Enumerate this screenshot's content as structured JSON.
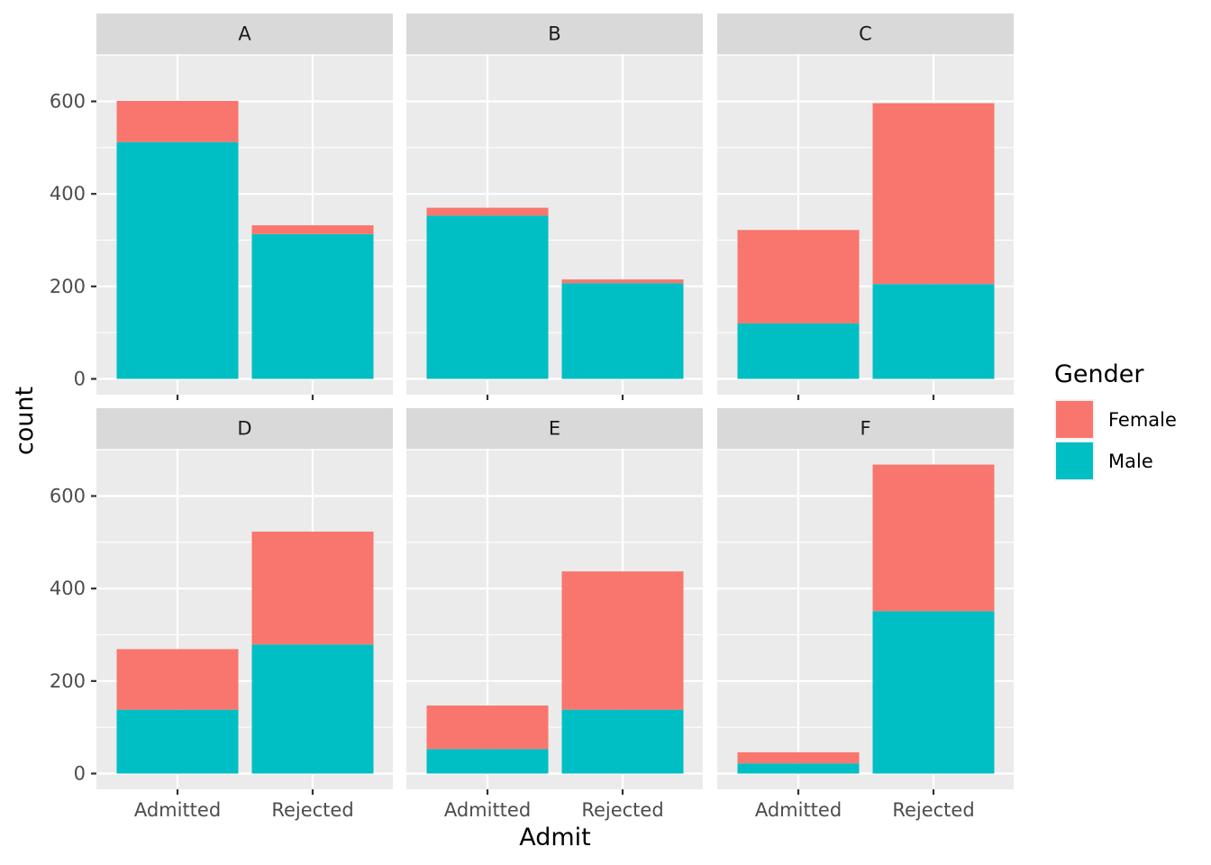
{
  "chart_data": {
    "type": "bar",
    "stacked": true,
    "facet_by": "Dept",
    "x_categories": [
      "Admitted",
      "Rejected"
    ],
    "xlabel": "Admit",
    "ylabel": "count",
    "ylim": [
      0,
      700
    ],
    "y_ticks": [
      0,
      200,
      400,
      600
    ],
    "grid": true,
    "legend": {
      "title": "Gender",
      "position": "right",
      "entries": [
        {
          "name": "Female",
          "color": "#F8766D"
        },
        {
          "name": "Male",
          "color": "#00BFC4"
        }
      ]
    },
    "panels": [
      {
        "label": "A",
        "series": [
          {
            "name": "Male",
            "values": [
              512,
              313
            ]
          },
          {
            "name": "Female",
            "values": [
              89,
              19
            ]
          }
        ]
      },
      {
        "label": "B",
        "series": [
          {
            "name": "Male",
            "values": [
              353,
              207
            ]
          },
          {
            "name": "Female",
            "values": [
              17,
              8
            ]
          }
        ]
      },
      {
        "label": "C",
        "series": [
          {
            "name": "Male",
            "values": [
              120,
              205
            ]
          },
          {
            "name": "Female",
            "values": [
              202,
              391
            ]
          }
        ]
      },
      {
        "label": "D",
        "series": [
          {
            "name": "Male",
            "values": [
              138,
              279
            ]
          },
          {
            "name": "Female",
            "values": [
              131,
              244
            ]
          }
        ]
      },
      {
        "label": "E",
        "series": [
          {
            "name": "Male",
            "values": [
              53,
              138
            ]
          },
          {
            "name": "Female",
            "values": [
              94,
              299
            ]
          }
        ]
      },
      {
        "label": "F",
        "series": [
          {
            "name": "Male",
            "values": [
              22,
              351
            ]
          },
          {
            "name": "Female",
            "values": [
              24,
              317
            ]
          }
        ]
      }
    ]
  }
}
